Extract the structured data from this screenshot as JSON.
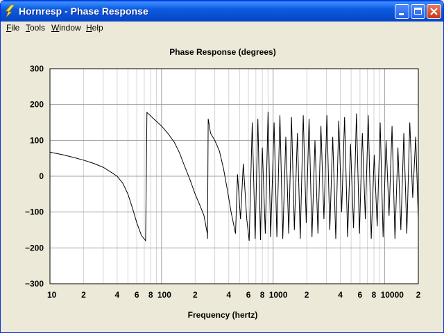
{
  "window": {
    "title": "Hornresp - Phase Response"
  },
  "menu": {
    "items": [
      {
        "accel": "F",
        "rest": "ile"
      },
      {
        "accel": "T",
        "rest": "ools"
      },
      {
        "accel": "W",
        "rest": "indow"
      },
      {
        "accel": "H",
        "rest": "elp"
      }
    ]
  },
  "colors": {
    "titlebar": "#0A4FD3",
    "trace": "#000000",
    "grid": "#C0C0C0"
  },
  "chart_data": {
    "type": "line",
    "title": "Phase Response (degrees)",
    "xlabel": "Frequency (hertz)",
    "ylabel": "",
    "x_scale": "log",
    "xlim": [
      10,
      20000
    ],
    "ylim": [
      -300,
      300
    ],
    "y_ticks": [
      "300",
      "200",
      "100",
      "0",
      "−100",
      "−200",
      "−300"
    ],
    "y_tick_values": [
      300,
      200,
      100,
      0,
      -100,
      -200,
      -300
    ],
    "x_ticks": [
      "10",
      "2",
      "4",
      "6",
      "8",
      "100",
      "2",
      "4",
      "6",
      "8",
      "1000",
      "2",
      "4",
      "6",
      "8",
      "10000",
      "2"
    ],
    "x_tick_values": [
      10,
      20,
      40,
      60,
      80,
      100,
      200,
      400,
      600,
      800,
      1000,
      2000,
      4000,
      6000,
      8000,
      10000,
      20000
    ],
    "grid": true,
    "series": [
      {
        "values": [
          [
            10,
            67
          ],
          [
            13,
            60
          ],
          [
            16,
            53
          ],
          [
            20,
            45
          ],
          [
            25,
            35
          ],
          [
            30,
            25
          ],
          [
            35,
            12
          ],
          [
            40,
            0
          ],
          [
            45,
            -20
          ],
          [
            50,
            -50
          ],
          [
            55,
            -90
          ],
          [
            60,
            -130
          ],
          [
            66,
            -165
          ],
          [
            72,
            -180
          ],
          [
            74,
            178
          ],
          [
            85,
            160
          ],
          [
            100,
            140
          ],
          [
            115,
            118
          ],
          [
            130,
            95
          ],
          [
            145,
            65
          ],
          [
            160,
            30
          ],
          [
            180,
            -10
          ],
          [
            200,
            -50
          ],
          [
            220,
            -80
          ],
          [
            240,
            -110
          ],
          [
            257,
            -160
          ],
          [
            258,
            -175
          ],
          [
            262,
            160
          ],
          [
            275,
            120
          ],
          [
            300,
            100
          ],
          [
            330,
            70
          ],
          [
            360,
            20
          ],
          [
            390,
            -40
          ],
          [
            420,
            -100
          ],
          [
            460,
            -160
          ],
          [
            480,
            5
          ],
          [
            510,
            -120
          ],
          [
            540,
            35
          ],
          [
            580,
            -120
          ],
          [
            610,
            -180
          ],
          [
            650,
            150
          ],
          [
            690,
            -175
          ],
          [
            730,
            160
          ],
          [
            770,
            -178
          ],
          [
            800,
            80
          ],
          [
            850,
            -160
          ],
          [
            900,
            180
          ],
          [
            950,
            -170
          ],
          [
            1020,
            150
          ],
          [
            1080,
            -170
          ],
          [
            1150,
            170
          ],
          [
            1220,
            -175
          ],
          [
            1300,
            110
          ],
          [
            1380,
            -160
          ],
          [
            1460,
            165
          ],
          [
            1550,
            -150
          ],
          [
            1650,
            120
          ],
          [
            1750,
            -175
          ],
          [
            1860,
            170
          ],
          [
            1980,
            -130
          ],
          [
            2100,
            160
          ],
          [
            2230,
            -170
          ],
          [
            2370,
            100
          ],
          [
            2520,
            -160
          ],
          [
            2680,
            140
          ],
          [
            2850,
            -120
          ],
          [
            3030,
            170
          ],
          [
            3220,
            -150
          ],
          [
            3420,
            110
          ],
          [
            3640,
            -175
          ],
          [
            3870,
            155
          ],
          [
            4110,
            -100
          ],
          [
            4370,
            165
          ],
          [
            4650,
            -170
          ],
          [
            4940,
            90
          ],
          [
            5250,
            -145
          ],
          [
            5580,
            175
          ],
          [
            5930,
            -160
          ],
          [
            6300,
            120
          ],
          [
            6700,
            -120
          ],
          [
            7120,
            170
          ],
          [
            7570,
            -175
          ],
          [
            8050,
            60
          ],
          [
            8560,
            -140
          ],
          [
            9100,
            150
          ],
          [
            9670,
            -170
          ],
          [
            10280,
            100
          ],
          [
            10930,
            -110
          ],
          [
            11620,
            140
          ],
          [
            12350,
            -175
          ],
          [
            13130,
            80
          ],
          [
            13950,
            -150
          ],
          [
            14830,
            120
          ],
          [
            15770,
            -160
          ],
          [
            16760,
            150
          ],
          [
            17820,
            -60
          ],
          [
            18940,
            110
          ],
          [
            20000,
            -120
          ]
        ]
      }
    ]
  }
}
